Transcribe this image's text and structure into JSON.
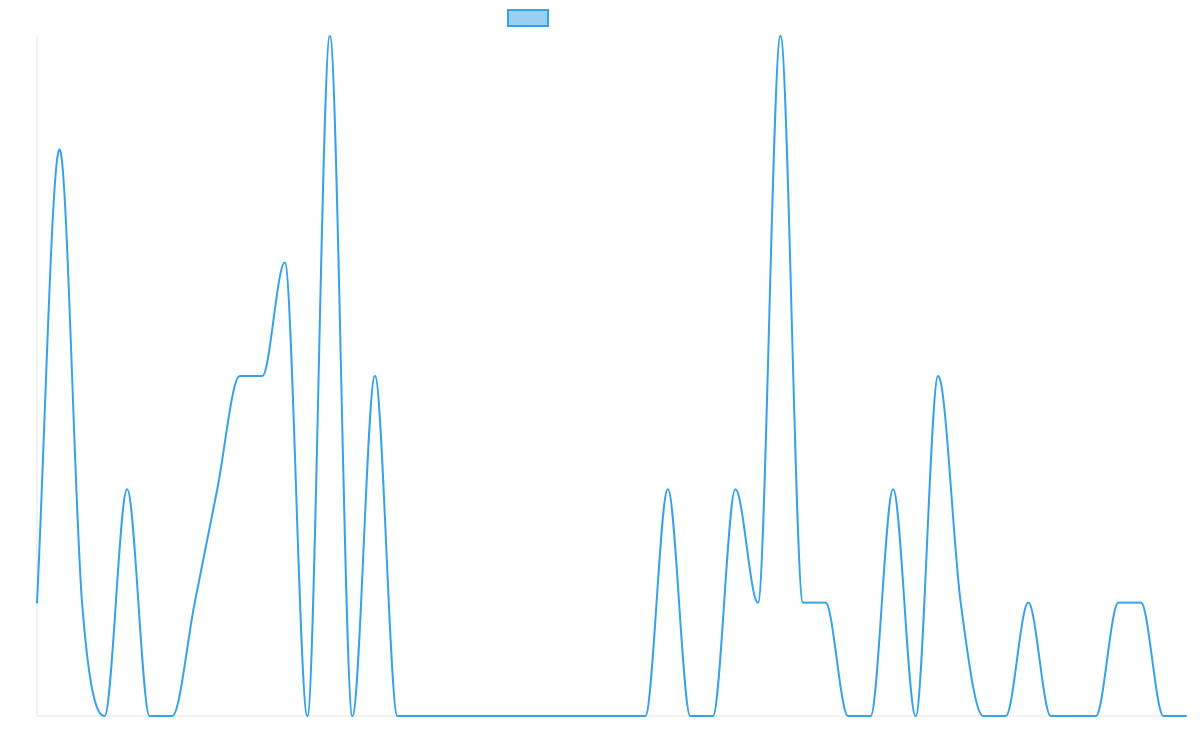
{
  "chart_data": {
    "type": "line",
    "title": "",
    "xlabel": "",
    "ylabel": "",
    "legend": {
      "placement": "top-center",
      "label": ""
    },
    "grid": false,
    "ylim": [
      0,
      6
    ],
    "x": [
      0,
      1,
      2,
      3,
      4,
      5,
      6,
      7,
      8,
      9,
      10,
      11,
      12,
      13,
      14,
      15,
      16,
      17,
      18,
      19,
      20,
      21,
      22,
      23,
      24,
      25,
      26,
      27,
      28,
      29,
      30,
      31,
      32,
      33,
      34,
      35,
      36,
      37,
      38,
      39,
      40,
      41,
      42,
      43,
      44,
      45,
      46,
      47,
      48,
      49,
      50,
      51
    ],
    "series": [
      {
        "name": "",
        "color": "#36a2eb",
        "fill_color": "#9ad0f5",
        "values": [
          1,
          5,
          1,
          0,
          2,
          0,
          0,
          1,
          2,
          3,
          3,
          4,
          0,
          6,
          0,
          3,
          0,
          0,
          0,
          0,
          0,
          0,
          0,
          0,
          0,
          0,
          0,
          0,
          2,
          0,
          0,
          2,
          1,
          6,
          1,
          1,
          0,
          0,
          2,
          0,
          3,
          1,
          0,
          0,
          1,
          0,
          0,
          0,
          1,
          1,
          0,
          0
        ]
      }
    ]
  }
}
